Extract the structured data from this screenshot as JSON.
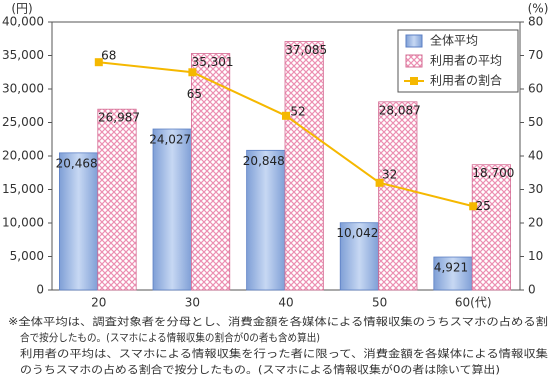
{
  "chart_data": {
    "type": "bar",
    "y_label": "(円)",
    "y2_label": "(%)",
    "categories": [
      "20",
      "30",
      "40",
      "50",
      "60(代)"
    ],
    "series": [
      {
        "name": "全体平均",
        "color": "#9ab7e6",
        "values": [
          20468,
          24027,
          20848,
          10042,
          4921
        ],
        "value_labels": [
          "20,468",
          "24,027",
          "20,848",
          "10,042",
          "4,921"
        ]
      },
      {
        "name": "利用者の平均",
        "color": "#f4b8cf",
        "values": [
          26987,
          35301,
          37085,
          28087,
          18700
        ],
        "value_labels": [
          "26,987",
          "35,301",
          "37,085",
          "28,087",
          "18,700"
        ]
      },
      {
        "name": "利用者の割合",
        "color": "#f5b800",
        "type": "line",
        "axis": "y2",
        "values": [
          68,
          65,
          52,
          32,
          25
        ]
      }
    ],
    "ylim": [
      0,
      40000
    ],
    "yticks": [
      0,
      {
        "value": 5000,
        "label": "5,000"
      },
      {
        "value": 10000,
        "label": "10,000"
      },
      {
        "value": 15000,
        "label": "15,000"
      },
      {
        "value": 20000,
        "label": "20,000"
      },
      {
        "value": 25000,
        "label": "25,000"
      },
      {
        "value": 30000,
        "label": "30,000"
      },
      {
        "value": 35000,
        "label": "35,000"
      },
      {
        "value": 40000,
        "label": "40,000"
      }
    ],
    "y2lim": [
      0,
      80
    ],
    "y2ticks": [
      0,
      10,
      20,
      30,
      40,
      50,
      60,
      70,
      80
    ],
    "legend": "upper right",
    "footnote": [
      "※全体平均は、調査対象者を分母とし、消費金額を各媒体による情報収集のうちスマホの占める割",
      "合で按分したもの。(スマホによる情報収集の割合が0の者も含め算出)",
      "利用者の平均は、スマホによる情報収集を行った者に限って、消費金額を各媒体による情報収集",
      "のうちスマホの占める割合で按分したもの。(スマホによる情報収集が0の者は除いて算出)"
    ]
  }
}
